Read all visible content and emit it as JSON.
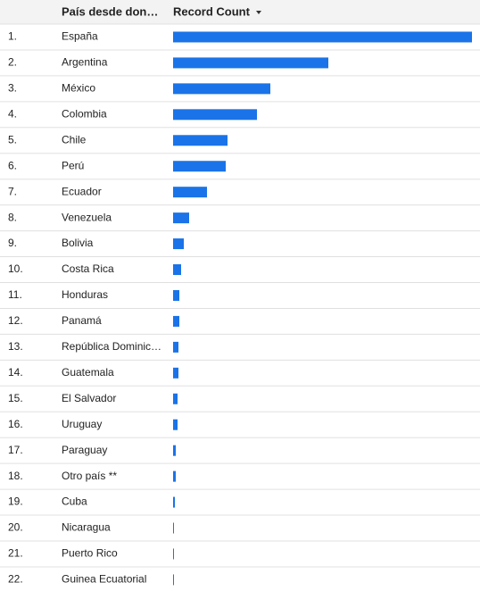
{
  "chart_data": {
    "type": "bar",
    "orientation": "horizontal",
    "color": "#1a73e8",
    "headers": [
      "País desde don…",
      "Record Count"
    ],
    "row_numbers": [
      "1.",
      "2.",
      "3.",
      "4.",
      "5.",
      "6.",
      "7.",
      "8.",
      "9.",
      "10.",
      "11.",
      "12.",
      "13.",
      "14.",
      "15.",
      "16.",
      "17.",
      "18.",
      "19.",
      "20.",
      "21.",
      "22."
    ],
    "categories": [
      "España",
      "Argentina",
      "México",
      "Colombia",
      "Chile",
      "Perú",
      "Ecuador",
      "Venezuela",
      "Bolivia",
      "Costa Rica",
      "Honduras",
      "Panamá",
      "República Dominic…",
      "Guatemala",
      "El Salvador",
      "Uruguay",
      "Paraguay",
      "Otro país **",
      "Cuba",
      "Nicaragua",
      "Puerto Rico",
      "Guinea Ecuatorial"
    ],
    "values": [
      335,
      174,
      109,
      94,
      61,
      59,
      38,
      18,
      12,
      9,
      7,
      7,
      6,
      6,
      5,
      5,
      3,
      3,
      2,
      1,
      1,
      1
    ]
  }
}
